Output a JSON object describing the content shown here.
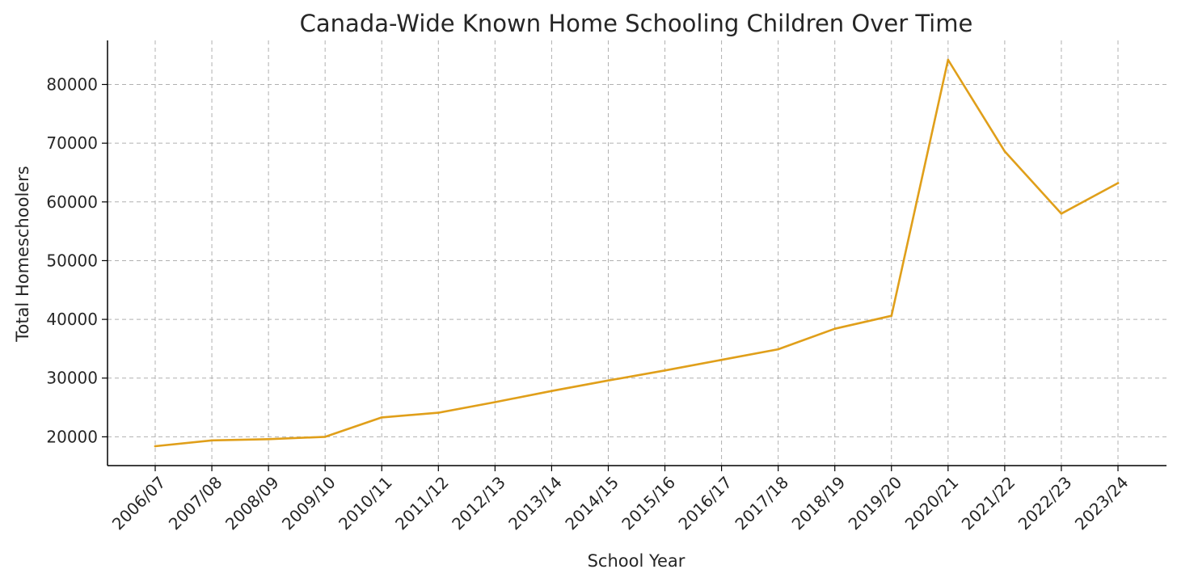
{
  "chart_data": {
    "type": "line",
    "title": "Canada-Wide Known Home Schooling Children Over Time",
    "xlabel": "School Year",
    "ylabel": "Total Homeschoolers",
    "categories": [
      "2006/07",
      "2007/08",
      "2008/09",
      "2009/10",
      "2010/11",
      "2011/12",
      "2012/13",
      "2013/14",
      "2014/15",
      "2015/16",
      "2016/17",
      "2017/18",
      "2018/19",
      "2019/20",
      "2020/21",
      "2021/22",
      "2022/23",
      "2023/24"
    ],
    "series": [
      {
        "color": "#E09F1A",
        "values": [
          18400,
          19400,
          19600,
          20000,
          23300,
          24100,
          25900,
          27800,
          29600,
          31300,
          33100,
          34900,
          38400,
          40600,
          84200,
          68600,
          58000,
          63200
        ]
      }
    ],
    "yticks": [
      20000,
      30000,
      40000,
      50000,
      60000,
      70000,
      80000
    ],
    "ylim": [
      15100,
      87500
    ],
    "grid": true,
    "legend": "none"
  }
}
